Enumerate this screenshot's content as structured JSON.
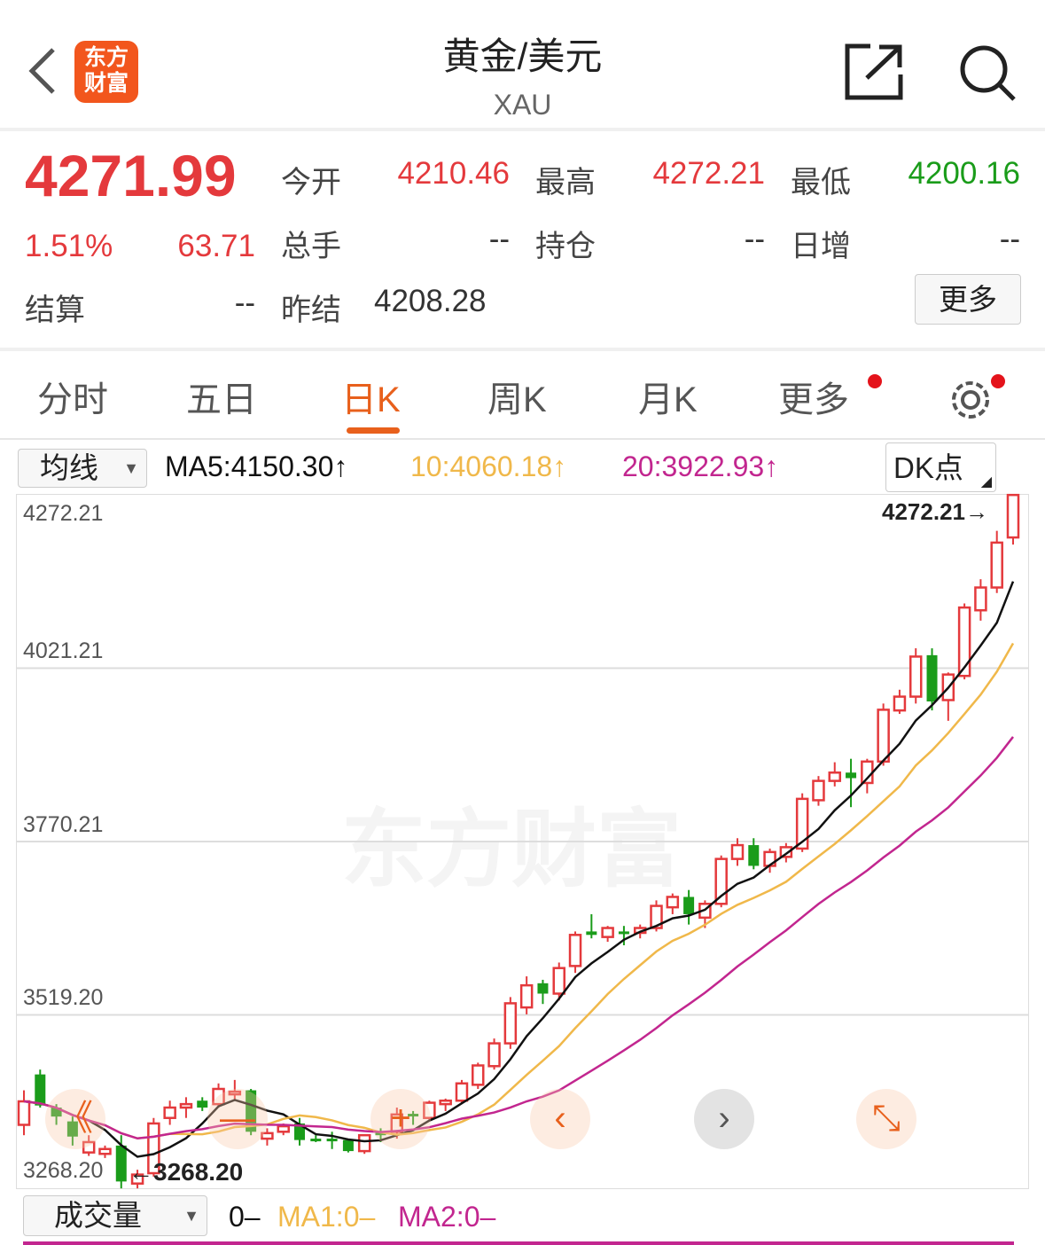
{
  "header": {
    "title": "黄金/美元",
    "subtitle": "XAU",
    "logo_text": "东方财富",
    "logo_line1": "东方",
    "logo_line2": "财富"
  },
  "quote": {
    "price": "4271.99",
    "change_pct": "1.51%",
    "change": "63.71",
    "open_label": "今开",
    "open": "4210.46",
    "high_label": "最高",
    "high": "4272.21",
    "low_label": "最低",
    "low": "4200.16",
    "volume_label": "总手",
    "volume": "--",
    "oi_label": "持仓",
    "oi": "--",
    "daily_inc_label": "日增",
    "daily_inc": "--",
    "settle_label": "结算",
    "settle": "--",
    "prev_settle_label": "昨结",
    "prev_settle": "4208.28",
    "more_label": "更多"
  },
  "tabs": [
    {
      "label": "分时"
    },
    {
      "label": "五日"
    },
    {
      "label": "日K",
      "active": true
    },
    {
      "label": "周K"
    },
    {
      "label": "月K"
    },
    {
      "label": "更多"
    }
  ],
  "ma_bar": {
    "selector": "均线",
    "ma5": "MA5:4150.30↑",
    "ma10": "10:4060.18↑",
    "ma20": "20:3922.93↑",
    "dk": "DK点"
  },
  "colors": {
    "up": "#e4393c",
    "down": "#1a9c1a",
    "ma5": "#111111",
    "ma10": "#f0b84a",
    "ma20": "#c2268f",
    "accent": "#e8601c"
  },
  "chart_data": {
    "type": "candlestick",
    "ylim": [
      3268.2,
      4272.21
    ],
    "y_ticks": [
      "4272.21",
      "4021.21",
      "3770.21",
      "3519.20",
      "3268.20"
    ],
    "max_label": "4272.21→",
    "min_label": "←3268.20",
    "watermark": "东方财富",
    "candles": [
      [
        3360,
        3410,
        3345,
        3394
      ],
      [
        3433,
        3440,
        3385,
        3388
      ],
      [
        3385,
        3390,
        3360,
        3372
      ],
      [
        3365,
        3372,
        3330,
        3343
      ],
      [
        3320,
        3345,
        3315,
        3335
      ],
      [
        3318,
        3330,
        3312,
        3325
      ],
      [
        3330,
        3345,
        3268,
        3278
      ],
      [
        3275,
        3295,
        3268,
        3288
      ],
      [
        3290,
        3370,
        3285,
        3362
      ],
      [
        3370,
        3395,
        3360,
        3385
      ],
      [
        3385,
        3400,
        3370,
        3390
      ],
      [
        3395,
        3400,
        3380,
        3385
      ],
      [
        3390,
        3420,
        3385,
        3412
      ],
      [
        3405,
        3425,
        3395,
        3408
      ],
      [
        3410,
        3412,
        3345,
        3350
      ],
      [
        3340,
        3355,
        3330,
        3348
      ],
      [
        3350,
        3362,
        3345,
        3358
      ],
      [
        3362,
        3370,
        3330,
        3338
      ],
      [
        3340,
        3345,
        3335,
        3338
      ],
      [
        3340,
        3350,
        3325,
        3338
      ],
      [
        3338,
        3340,
        3320,
        3322
      ],
      [
        3322,
        3345,
        3318,
        3345
      ],
      [
        3350,
        3355,
        3335,
        3345
      ],
      [
        3350,
        3385,
        3340,
        3375
      ],
      [
        3376,
        3380,
        3360,
        3374
      ],
      [
        3370,
        3395,
        3365,
        3392
      ],
      [
        3390,
        3398,
        3380,
        3395
      ],
      [
        3395,
        3425,
        3390,
        3420
      ],
      [
        3418,
        3450,
        3412,
        3446
      ],
      [
        3445,
        3485,
        3440,
        3478
      ],
      [
        3478,
        3545,
        3470,
        3536
      ],
      [
        3530,
        3575,
        3520,
        3562
      ],
      [
        3565,
        3570,
        3535,
        3550
      ],
      [
        3550,
        3595,
        3540,
        3587
      ],
      [
        3590,
        3640,
        3580,
        3635
      ],
      [
        3640,
        3665,
        3630,
        3635
      ],
      [
        3632,
        3648,
        3625,
        3645
      ],
      [
        3640,
        3648,
        3620,
        3638
      ],
      [
        3638,
        3650,
        3630,
        3645
      ],
      [
        3645,
        3685,
        3640,
        3677
      ],
      [
        3675,
        3695,
        3665,
        3690
      ],
      [
        3690,
        3700,
        3650,
        3665
      ],
      [
        3660,
        3685,
        3645,
        3680
      ],
      [
        3680,
        3750,
        3675,
        3745
      ],
      [
        3745,
        3775,
        3735,
        3765
      ],
      [
        3765,
        3775,
        3730,
        3735
      ],
      [
        3735,
        3760,
        3725,
        3755
      ],
      [
        3748,
        3768,
        3740,
        3762
      ],
      [
        3760,
        3840,
        3755,
        3832
      ],
      [
        3830,
        3865,
        3822,
        3858
      ],
      [
        3858,
        3885,
        3850,
        3870
      ],
      [
        3870,
        3890,
        3820,
        3862
      ],
      [
        3855,
        3890,
        3840,
        3886
      ],
      [
        3886,
        3970,
        3880,
        3961
      ],
      [
        3960,
        3990,
        3955,
        3980
      ],
      [
        3980,
        4050,
        3970,
        4038
      ],
      [
        4040,
        4050,
        3960,
        3973
      ],
      [
        3975,
        4015,
        3945,
        4012
      ],
      [
        4010,
        4115,
        4005,
        4109
      ],
      [
        4105,
        4150,
        4090,
        4138
      ],
      [
        4138,
        4220,
        4130,
        4203
      ],
      [
        4210.46,
        4272.21,
        4200.16,
        4271.99
      ]
    ]
  },
  "nav_buttons": [
    {
      "glyph": "《",
      "name": "scroll-left-fast"
    },
    {
      "glyph": "—",
      "name": "zoom-out"
    },
    {
      "glyph": "+",
      "name": "zoom-in"
    },
    {
      "glyph": "‹",
      "name": "move-left"
    },
    {
      "glyph": "›",
      "name": "move-right"
    },
    {
      "glyph": "⤡",
      "name": "fullscreen"
    }
  ],
  "volume_bar": {
    "selector": "成交量",
    "value": "0–",
    "ma1": "MA1:0–",
    "ma2": "MA2:0–"
  }
}
